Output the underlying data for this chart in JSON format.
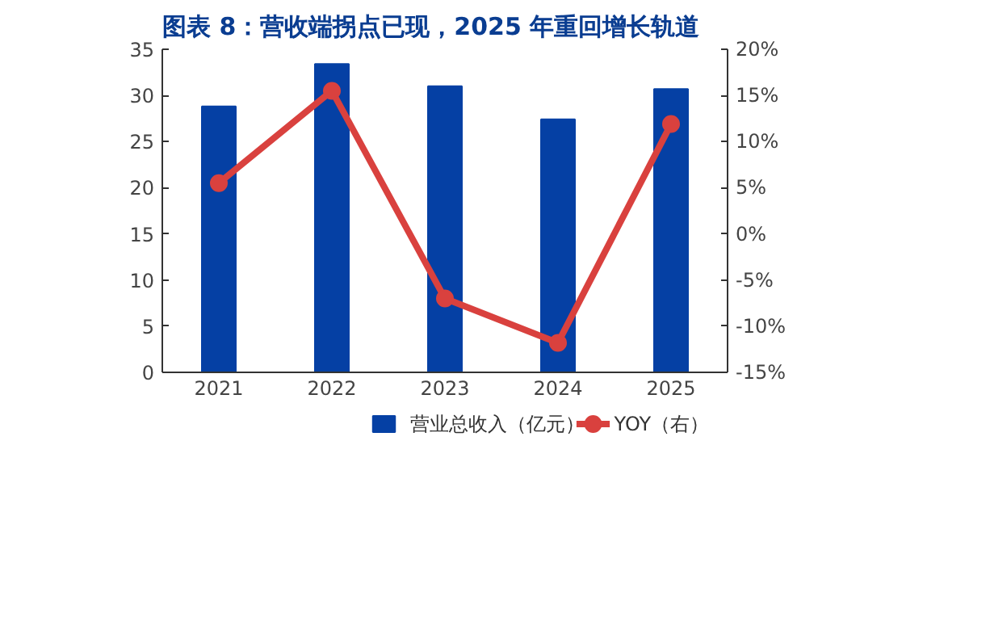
{
  "chart_data": {
    "type": "bar",
    "title": "图表 8：营收端拐点已现，2025 年重回增长轨道",
    "categories": [
      "2021",
      "2022",
      "2023",
      "2024",
      "2025"
    ],
    "series": [
      {
        "name": "营业总收入（亿元）",
        "color": "#0540a4",
        "values": [
          28.8,
          33.4,
          31.0,
          27.4,
          30.7
        ]
      },
      {
        "name": "YOY（右）",
        "type": "line",
        "axis": "y2",
        "color": "#d9413e",
        "marker": "circle",
        "values": [
          5.5,
          15.5,
          -7.0,
          -11.8,
          11.9
        ]
      }
    ],
    "ylim": [
      0,
      35
    ],
    "yticks": [
      0,
      5,
      10,
      15,
      20,
      25,
      30,
      35
    ],
    "y2lim": [
      -15,
      20
    ],
    "y2ticks": [
      {
        "value": -15,
        "label": "-15%"
      },
      {
        "value": -10,
        "label": "-10%"
      },
      {
        "value": -5,
        "label": "-5%"
      },
      {
        "value": 0,
        "label": "0%"
      },
      {
        "value": 5,
        "label": "5%"
      },
      {
        "value": 10,
        "label": "10%"
      },
      {
        "value": 15,
        "label": "15%"
      },
      {
        "value": 20,
        "label": "20%"
      }
    ],
    "grid": false,
    "legend": "bottom"
  }
}
